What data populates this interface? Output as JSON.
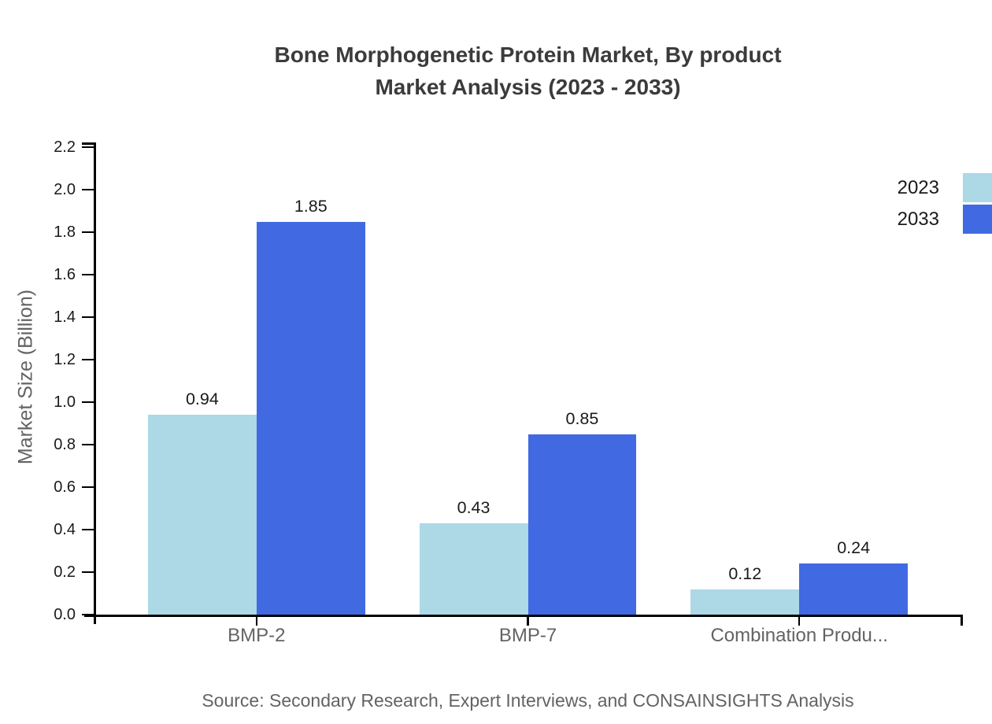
{
  "chart_data": {
    "type": "bar",
    "title": "Bone Morphogenetic Protein Market, By product Market Analysis (2023 - 2033)",
    "title_lines": [
      "Bone Morphogenetic Protein Market, By product",
      "Market Analysis (2023 - 2033)"
    ],
    "categories": [
      "BMP-2",
      "BMP-7",
      "Combination Produ..."
    ],
    "series": [
      {
        "name": "2023",
        "color": "#ADD8E6",
        "values": [
          0.94,
          0.43,
          0.12
        ]
      },
      {
        "name": "2033",
        "color": "#4169E1",
        "values": [
          1.85,
          0.85,
          0.24
        ]
      }
    ],
    "xlabel": "",
    "ylabel": "Market Size (Billion)",
    "ylim": [
      0,
      2.2
    ],
    "ytick_step": 0.2,
    "ytick_labels": [
      "0.0",
      "0.2",
      "0.4",
      "0.6",
      "0.8",
      "1.0",
      "1.2",
      "1.4",
      "1.6",
      "1.8",
      "2.0",
      "2.2"
    ],
    "grid": false,
    "legend_position": "top-right",
    "bar_value_labels_shown": true,
    "source": "Source: Secondary Research, Expert Interviews, and CONSAINSIGHTS Analysis",
    "colors": {
      "axis": "#000000",
      "title_text": "#3b3b3b",
      "tick_text": "#1a1a1a",
      "muted_text": "#636363",
      "background": "#ffffff"
    }
  }
}
